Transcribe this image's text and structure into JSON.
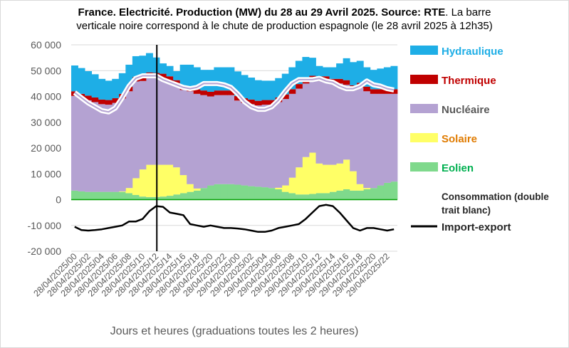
{
  "title": {
    "bold": "France. Electricité. Production (MW) du 28 au 29 Avril 2025. Source: RTE",
    "rest": ". La barre",
    "line2": "verticale noire correspond à le chute de production espagnole (le 28 avril 2025 à 12h35)"
  },
  "chart_data": {
    "type": "area",
    "title": "France. Electricité. Production (MW) du 28 au 29 Avril 2025. Source: RTE. La barre verticale noire correspond à le chute de production espagnole (le 28 avril 2025 à 12h35)",
    "xlabel": "Jours et heures (graduations toutes les 2 heures)",
    "ylabel": "",
    "ylim": [
      -20000,
      60000
    ],
    "yticks": [
      -20000,
      -10000,
      0,
      10000,
      20000,
      30000,
      40000,
      50000,
      60000
    ],
    "ytick_labels": [
      "-20 000",
      "-10 000",
      "0",
      "10 000",
      "20 000",
      "30 000",
      "40 000",
      "50 000",
      "60 000"
    ],
    "grid": true,
    "legend_position": "right",
    "x": [
      "28/04/2025/00",
      "28/04/2025/01",
      "28/04/2025/02",
      "28/04/2025/03",
      "28/04/2025/04",
      "28/04/2025/05",
      "28/04/2025/06",
      "28/04/2025/07",
      "28/04/2025/08",
      "28/04/2025/09",
      "28/04/2025/10",
      "28/04/2025/11",
      "28/04/2025/12",
      "28/04/2025/13",
      "28/04/2025/14",
      "28/04/2025/15",
      "28/04/2025/16",
      "28/04/2025/17",
      "28/04/2025/18",
      "28/04/2025/19",
      "28/04/2025/20",
      "28/04/2025/21",
      "28/04/2025/22",
      "28/04/2025/23",
      "29/04/2025/00",
      "29/04/2025/01",
      "29/04/2025/02",
      "29/04/2025/03",
      "29/04/2025/04",
      "29/04/2025/05",
      "29/04/2025/06",
      "29/04/2025/07",
      "29/04/2025/08",
      "29/04/2025/09",
      "29/04/2025/10",
      "29/04/2025/11",
      "29/04/2025/12",
      "29/04/2025/13",
      "29/04/2025/14",
      "29/04/2025/15",
      "29/04/2025/16",
      "29/04/2025/17",
      "29/04/2025/18",
      "29/04/2025/19",
      "29/04/2025/20",
      "29/04/2025/21",
      "29/04/2025/22",
      "29/04/2025/23"
    ],
    "xtick_labels": [
      "28/04/2025/00",
      "28/04/2025/02",
      "28/04/2025/04",
      "28/04/2025/06",
      "28/04/2025/08",
      "28/04/2025/10",
      "28/04/2025/12",
      "28/04/2025/14",
      "28/04/2025/16",
      "28/04/2025/18",
      "28/04/2025/20",
      "28/04/2025/22",
      "29/04/2025/00",
      "29/04/2025/02",
      "29/04/2025/04",
      "29/04/2025/06",
      "29/04/2025/08",
      "29/04/2025/10",
      "29/04/2025/12",
      "29/04/2025/14",
      "29/04/2025/16",
      "29/04/2025/18",
      "29/04/2025/20",
      "29/04/2025/22"
    ],
    "series": [
      {
        "name": "Eolien",
        "color": "#7fd98c",
        "kind": "stack",
        "values": [
          3500,
          3200,
          3000,
          3000,
          3000,
          3000,
          3000,
          3000,
          2500,
          1800,
          1200,
          1000,
          1000,
          1200,
          1500,
          2000,
          2500,
          3000,
          3500,
          4500,
          5500,
          6000,
          6000,
          6000,
          5800,
          5500,
          5200,
          5000,
          4800,
          4500,
          4000,
          3000,
          2500,
          2000,
          2000,
          2200,
          2500,
          2500,
          3000,
          3500,
          4000,
          3500,
          3500,
          4000,
          4500,
          5500,
          6500,
          7000
        ]
      },
      {
        "name": "Solaire",
        "color": "#ffff66",
        "kind": "stack",
        "values": [
          0,
          0,
          0,
          0,
          0,
          0,
          0,
          200,
          2000,
          6500,
          10500,
          12500,
          12500,
          12300,
          12000,
          10500,
          7000,
          3000,
          800,
          0,
          0,
          0,
          0,
          0,
          0,
          0,
          0,
          0,
          0,
          0,
          600,
          2500,
          6000,
          10500,
          14500,
          16000,
          11500,
          11000,
          10500,
          10500,
          11500,
          7500,
          2500,
          500,
          0,
          0,
          0,
          0
        ]
      },
      {
        "name": "Nucléaire",
        "color": "#b4a2d2",
        "kind": "stack",
        "values": [
          36700,
          36000,
          35500,
          34800,
          34000,
          33800,
          34500,
          36000,
          37500,
          37500,
          34300,
          34000,
          33800,
          33500,
          32500,
          32000,
          33000,
          36000,
          36700,
          36000,
          34500,
          34500,
          34500,
          34500,
          32600,
          32000,
          31800,
          31500,
          32000,
          32300,
          33200,
          33500,
          32500,
          30500,
          28500,
          28000,
          32000,
          32500,
          31500,
          31000,
          29000,
          31500,
          37500,
          37500,
          36500,
          35500,
          34500,
          34000
        ]
      },
      {
        "name": "Thermique",
        "color": "#c00000",
        "kind": "stack",
        "values": [
          1800,
          1800,
          1800,
          1800,
          1800,
          1800,
          1800,
          1800,
          1800,
          1800,
          1800,
          1800,
          1800,
          1800,
          1800,
          1800,
          1800,
          1800,
          1800,
          1800,
          1800,
          1800,
          1800,
          1800,
          1800,
          1800,
          1800,
          1800,
          1800,
          1800,
          1800,
          1800,
          1800,
          1800,
          1800,
          1800,
          1800,
          1800,
          1800,
          1800,
          1800,
          1800,
          1800,
          1800,
          1800,
          1800,
          1800,
          1800
        ]
      },
      {
        "name": "Hydraulique",
        "color": "#1eaee6",
        "kind": "stack",
        "values": [
          10000,
          10000,
          9500,
          9000,
          8000,
          7500,
          7500,
          8000,
          8500,
          8000,
          8000,
          7500,
          6000,
          4000,
          4000,
          3500,
          8000,
          8500,
          8500,
          8000,
          8500,
          9000,
          9000,
          9000,
          9500,
          9000,
          8500,
          8000,
          7500,
          7500,
          7500,
          8000,
          8500,
          9000,
          8500,
          7000,
          4000,
          3500,
          4500,
          6000,
          8500,
          9000,
          8500,
          7500,
          7500,
          8000,
          8500,
          9000
        ]
      },
      {
        "name": "Consommation (double trait blanc)",
        "color": "#ffffff",
        "kind": "line-double",
        "values": [
          41500,
          39500,
          37500,
          36000,
          34500,
          34000,
          35500,
          39500,
          44000,
          47000,
          48000,
          48000,
          48000,
          46500,
          45500,
          44500,
          43500,
          43000,
          43500,
          45000,
          45000,
          45000,
          44500,
          43500,
          41000,
          38000,
          36000,
          35000,
          35000,
          36000,
          38500,
          42000,
          45000,
          46500,
          46500,
          46500,
          47000,
          46000,
          45500,
          44000,
          43000,
          43000,
          44000,
          46000,
          44500,
          44000,
          43000,
          42500
        ]
      },
      {
        "name": "Import-export",
        "color": "#000000",
        "kind": "line",
        "values": [
          -10500,
          -11800,
          -12000,
          -11800,
          -11500,
          -11000,
          -10500,
          -10000,
          -8500,
          -8500,
          -7500,
          -4500,
          -2500,
          -2800,
          -5000,
          -5500,
          -6000,
          -9500,
          -10000,
          -10500,
          -10000,
          -10500,
          -11000,
          -11000,
          -11200,
          -11500,
          -12000,
          -12500,
          -12500,
          -12000,
          -11000,
          -10500,
          -10000,
          -9500,
          -7500,
          -5000,
          -2500,
          -2000,
          -2500,
          -5000,
          -8000,
          -11000,
          -12000,
          -11000,
          -11000,
          -11500,
          -12000,
          -11500
        ]
      }
    ],
    "marker": {
      "x_value": "28/04/2025/12:35",
      "position_hours": 12.6
    }
  },
  "legend": [
    {
      "label": "Hydraulique",
      "color": "#1eaee6",
      "text_color": "#1eaee6"
    },
    {
      "label": "Thermique",
      "color": "#c00000",
      "text_color": "#c00000"
    },
    {
      "label": "Nucléaire",
      "color": "#b4a2d2",
      "text_color": "#595959"
    },
    {
      "label": "Solaire",
      "color": "#ffff66",
      "text_color": "#e07b00"
    },
    {
      "label": "Eolien",
      "color": "#7fd98c",
      "text_color": "#00b050"
    },
    {
      "label": "Consommation (double trait blanc)",
      "color": "#ffffff",
      "text_color": "#262626"
    },
    {
      "label": "Import-export",
      "color": "#000000",
      "text_color": "#262626"
    }
  ]
}
